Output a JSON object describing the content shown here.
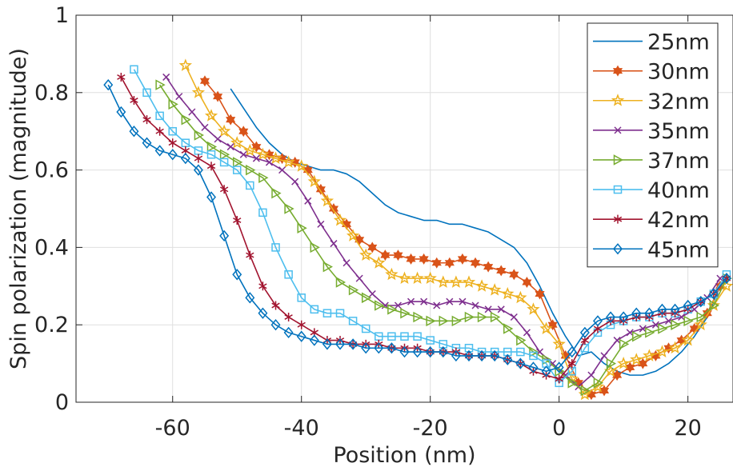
{
  "chart_data": {
    "type": "line",
    "title": "",
    "xlabel": "Position (nm)",
    "ylabel": "Spin polarization (magnitude)",
    "xlim": [
      -75,
      27
    ],
    "ylim": [
      0,
      1
    ],
    "xticks": [
      -60,
      -40,
      -20,
      0,
      20
    ],
    "yticks": [
      0,
      0.2,
      0.4,
      0.6,
      0.8,
      1
    ],
    "xtick_labels": [
      "-60",
      "-40",
      "-20",
      "0",
      "20"
    ],
    "ytick_labels": [
      "0",
      "0.2",
      "0.4",
      "0.6",
      "0.8",
      "1"
    ],
    "grid": true,
    "legend_position": "top-right",
    "series": [
      {
        "name": "25nm",
        "color": "#0072bd",
        "marker": "none",
        "x": [
          -51,
          -49,
          -47,
          -45,
          -43,
          -41,
          -39,
          -37,
          -35,
          -33,
          -31,
          -29,
          -27,
          -25,
          -23,
          -21,
          -19,
          -17,
          -15,
          -13,
          -11,
          -9,
          -7,
          -5,
          -3,
          -1,
          1,
          3,
          5,
          7,
          9,
          11,
          13,
          15,
          17,
          19,
          21,
          23,
          25
        ],
        "y": [
          0.81,
          0.76,
          0.71,
          0.67,
          0.64,
          0.62,
          0.61,
          0.6,
          0.6,
          0.59,
          0.57,
          0.54,
          0.51,
          0.49,
          0.48,
          0.47,
          0.47,
          0.46,
          0.46,
          0.45,
          0.44,
          0.42,
          0.4,
          0.36,
          0.3,
          0.23,
          0.17,
          0.12,
          0.13,
          0.1,
          0.08,
          0.07,
          0.07,
          0.08,
          0.1,
          0.13,
          0.17,
          0.22,
          0.3
        ]
      },
      {
        "name": "30nm",
        "color": "#d95319",
        "marker": "hexagram",
        "x": [
          -55,
          -53,
          -51,
          -49,
          -47,
          -45,
          -43,
          -41,
          -39,
          -37,
          -35,
          -33,
          -31,
          -29,
          -27,
          -25,
          -23,
          -21,
          -19,
          -17,
          -15,
          -13,
          -11,
          -9,
          -7,
          -5,
          -3,
          -1,
          1,
          3,
          5,
          7,
          9,
          11,
          13,
          15,
          17,
          19,
          21,
          23,
          25
        ],
        "y": [
          0.83,
          0.79,
          0.73,
          0.7,
          0.66,
          0.64,
          0.63,
          0.62,
          0.6,
          0.55,
          0.5,
          0.46,
          0.42,
          0.4,
          0.38,
          0.38,
          0.37,
          0.37,
          0.36,
          0.36,
          0.37,
          0.36,
          0.35,
          0.34,
          0.33,
          0.31,
          0.28,
          0.2,
          0.12,
          0.05,
          0.02,
          0.03,
          0.07,
          0.09,
          0.1,
          0.12,
          0.14,
          0.16,
          0.19,
          0.23,
          0.3
        ]
      },
      {
        "name": "32nm",
        "color": "#edb120",
        "marker": "pentagram",
        "x": [
          -58,
          -56,
          -54,
          -52,
          -50,
          -48,
          -46,
          -44,
          -42,
          -40,
          -38,
          -36,
          -34,
          -32,
          -30,
          -28,
          -26,
          -24,
          -22,
          -20,
          -18,
          -16,
          -14,
          -12,
          -10,
          -8,
          -6,
          -4,
          -2,
          0,
          2,
          4,
          6,
          8,
          10,
          12,
          14,
          16,
          18,
          20,
          22,
          24,
          26
        ],
        "y": [
          0.87,
          0.8,
          0.74,
          0.7,
          0.67,
          0.65,
          0.64,
          0.63,
          0.62,
          0.61,
          0.57,
          0.52,
          0.47,
          0.43,
          0.38,
          0.36,
          0.33,
          0.32,
          0.32,
          0.32,
          0.31,
          0.31,
          0.31,
          0.3,
          0.29,
          0.28,
          0.27,
          0.24,
          0.19,
          0.15,
          0.06,
          0.02,
          0.04,
          0.08,
          0.1,
          0.11,
          0.12,
          0.13,
          0.14,
          0.16,
          0.2,
          0.25,
          0.3
        ]
      },
      {
        "name": "35nm",
        "color": "#7e2f8e",
        "marker": "x",
        "x": [
          -61,
          -59,
          -57,
          -55,
          -53,
          -51,
          -49,
          -47,
          -45,
          -43,
          -41,
          -39,
          -37,
          -35,
          -33,
          -31,
          -29,
          -27,
          -25,
          -23,
          -21,
          -19,
          -17,
          -15,
          -13,
          -11,
          -9,
          -7,
          -5,
          -3,
          -1,
          1,
          3,
          5,
          7,
          9,
          11,
          13,
          15,
          17,
          19,
          21,
          23,
          25
        ],
        "y": [
          0.84,
          0.79,
          0.75,
          0.71,
          0.68,
          0.66,
          0.64,
          0.63,
          0.62,
          0.6,
          0.57,
          0.52,
          0.46,
          0.41,
          0.36,
          0.32,
          0.28,
          0.25,
          0.25,
          0.26,
          0.26,
          0.25,
          0.26,
          0.26,
          0.25,
          0.24,
          0.24,
          0.22,
          0.18,
          0.13,
          0.1,
          0.07,
          0.04,
          0.07,
          0.12,
          0.16,
          0.18,
          0.19,
          0.2,
          0.21,
          0.22,
          0.24,
          0.27,
          0.32
        ]
      },
      {
        "name": "37nm",
        "color": "#77ac30",
        "marker": "triangle-right",
        "x": [
          -62,
          -60,
          -58,
          -56,
          -54,
          -52,
          -50,
          -48,
          -46,
          -44,
          -42,
          -40,
          -38,
          -36,
          -34,
          -32,
          -30,
          -28,
          -26,
          -24,
          -22,
          -20,
          -18,
          -16,
          -14,
          -12,
          -10,
          -8,
          -6,
          -4,
          -2,
          0,
          2,
          4,
          6,
          8,
          10,
          12,
          14,
          16,
          18,
          20,
          22,
          24,
          26
        ],
        "y": [
          0.82,
          0.77,
          0.73,
          0.69,
          0.66,
          0.64,
          0.62,
          0.6,
          0.58,
          0.54,
          0.5,
          0.45,
          0.4,
          0.35,
          0.31,
          0.29,
          0.27,
          0.25,
          0.24,
          0.23,
          0.22,
          0.21,
          0.21,
          0.21,
          0.22,
          0.22,
          0.22,
          0.19,
          0.16,
          0.13,
          0.11,
          0.08,
          0.05,
          0.03,
          0.05,
          0.1,
          0.15,
          0.17,
          0.18,
          0.19,
          0.2,
          0.21,
          0.22,
          0.25,
          0.32
        ]
      },
      {
        "name": "40nm",
        "color": "#4dbeee",
        "marker": "square",
        "x": [
          -66,
          -64,
          -62,
          -60,
          -58,
          -56,
          -54,
          -52,
          -50,
          -48,
          -46,
          -44,
          -42,
          -40,
          -38,
          -36,
          -34,
          -32,
          -30,
          -28,
          -26,
          -24,
          -22,
          -20,
          -18,
          -16,
          -14,
          -12,
          -10,
          -8,
          -6,
          -4,
          -2,
          0,
          2,
          4,
          6,
          8,
          10,
          12,
          14,
          16,
          18,
          20,
          22,
          24,
          26
        ],
        "y": [
          0.86,
          0.8,
          0.74,
          0.7,
          0.67,
          0.65,
          0.64,
          0.62,
          0.6,
          0.56,
          0.49,
          0.4,
          0.33,
          0.27,
          0.24,
          0.23,
          0.23,
          0.21,
          0.19,
          0.17,
          0.17,
          0.17,
          0.17,
          0.16,
          0.15,
          0.14,
          0.14,
          0.13,
          0.13,
          0.13,
          0.13,
          0.12,
          0.1,
          0.05,
          0.08,
          0.14,
          0.18,
          0.2,
          0.21,
          0.22,
          0.22,
          0.23,
          0.23,
          0.24,
          0.26,
          0.28,
          0.33
        ]
      },
      {
        "name": "42nm",
        "color": "#a2142f",
        "marker": "asterisk",
        "x": [
          -68,
          -66,
          -64,
          -62,
          -60,
          -58,
          -56,
          -54,
          -52,
          -50,
          -48,
          -46,
          -44,
          -42,
          -40,
          -38,
          -36,
          -34,
          -32,
          -30,
          -28,
          -26,
          -24,
          -22,
          -20,
          -18,
          -16,
          -14,
          -12,
          -10,
          -8,
          -6,
          -4,
          -2,
          0,
          2,
          4,
          6,
          8,
          10,
          12,
          14,
          16,
          18,
          20,
          22,
          24,
          26
        ],
        "y": [
          0.84,
          0.78,
          0.73,
          0.7,
          0.67,
          0.65,
          0.63,
          0.61,
          0.55,
          0.47,
          0.38,
          0.3,
          0.25,
          0.22,
          0.2,
          0.18,
          0.16,
          0.16,
          0.15,
          0.15,
          0.15,
          0.14,
          0.14,
          0.14,
          0.13,
          0.13,
          0.13,
          0.12,
          0.12,
          0.12,
          0.11,
          0.1,
          0.08,
          0.07,
          0.06,
          0.1,
          0.16,
          0.19,
          0.21,
          0.21,
          0.22,
          0.22,
          0.23,
          0.23,
          0.24,
          0.26,
          0.28,
          0.32
        ]
      },
      {
        "name": "45nm",
        "color": "#0072bd",
        "marker": "diamond",
        "x": [
          -70,
          -68,
          -66,
          -64,
          -62,
          -60,
          -58,
          -56,
          -54,
          -52,
          -50,
          -48,
          -46,
          -44,
          -42,
          -40,
          -38,
          -36,
          -34,
          -32,
          -30,
          -28,
          -26,
          -24,
          -22,
          -20,
          -18,
          -16,
          -14,
          -12,
          -10,
          -8,
          -6,
          -4,
          -2,
          0,
          2,
          4,
          6,
          8,
          10,
          12,
          14,
          16,
          18,
          20,
          22,
          24,
          26
        ],
        "y": [
          0.82,
          0.75,
          0.7,
          0.67,
          0.65,
          0.64,
          0.63,
          0.6,
          0.53,
          0.43,
          0.33,
          0.27,
          0.23,
          0.2,
          0.18,
          0.17,
          0.16,
          0.15,
          0.15,
          0.15,
          0.14,
          0.14,
          0.14,
          0.13,
          0.13,
          0.13,
          0.13,
          0.12,
          0.12,
          0.12,
          0.12,
          0.11,
          0.1,
          0.09,
          0.08,
          0.09,
          0.13,
          0.18,
          0.21,
          0.22,
          0.22,
          0.23,
          0.23,
          0.24,
          0.24,
          0.25,
          0.26,
          0.28,
          0.32
        ]
      }
    ]
  }
}
